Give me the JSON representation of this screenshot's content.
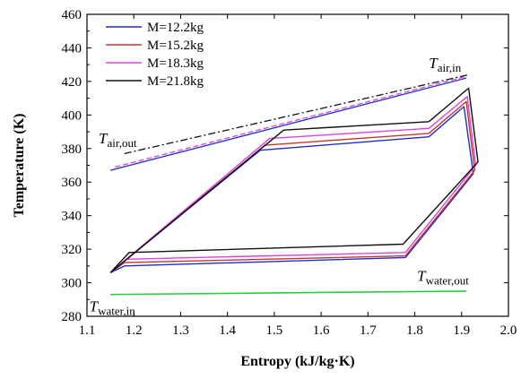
{
  "chart_data": {
    "type": "line",
    "xlabel": "Entropy (kJ/kg·K)",
    "ylabel": "Temperature (K)",
    "xlim": [
      1.1,
      2.0
    ],
    "ylim": [
      280,
      460
    ],
    "xticks": [
      "1.1",
      "1.2",
      "1.3",
      "1.4",
      "1.5",
      "1.6",
      "1.7",
      "1.8",
      "1.9",
      "2.0"
    ],
    "yticks": [
      "280",
      "300",
      "320",
      "340",
      "360",
      "380",
      "400",
      "420",
      "440",
      "460"
    ],
    "legend_position": "top-left",
    "series": [
      {
        "name": "M=12.2kg",
        "color": "#1f2fc8",
        "points": [
          [
            1.15,
            306
          ],
          [
            1.47,
            379
          ],
          [
            1.83,
            387
          ],
          [
            1.905,
            405
          ],
          [
            1.925,
            365
          ],
          [
            1.78,
            315
          ],
          [
            1.18,
            310
          ],
          [
            1.15,
            306
          ]
        ]
      },
      {
        "name": "M=15.2kg",
        "color": "#c0392b",
        "points": [
          [
            1.15,
            306
          ],
          [
            1.48,
            382
          ],
          [
            1.83,
            389
          ],
          [
            1.91,
            408
          ],
          [
            1.928,
            367
          ],
          [
            1.78,
            316
          ],
          [
            1.18,
            312
          ],
          [
            1.15,
            306
          ]
        ]
      },
      {
        "name": "M=18.3kg",
        "color": "#e040e0",
        "points": [
          [
            1.15,
            306
          ],
          [
            1.49,
            386
          ],
          [
            1.83,
            392
          ],
          [
            1.912,
            411
          ],
          [
            1.93,
            370
          ],
          [
            1.78,
            318
          ],
          [
            1.185,
            314
          ],
          [
            1.15,
            306
          ]
        ]
      },
      {
        "name": "M=21.8kg",
        "color": "#111111",
        "points": [
          [
            1.15,
            306
          ],
          [
            1.52,
            391
          ],
          [
            1.83,
            396
          ],
          [
            1.915,
            416
          ],
          [
            1.935,
            372
          ],
          [
            1.775,
            323
          ],
          [
            1.19,
            318
          ],
          [
            1.15,
            306
          ]
        ]
      }
    ],
    "reference_lines": [
      {
        "role": "air-out-dashdot",
        "color": "#111111",
        "style": "dashdot",
        "points": [
          [
            1.18,
            377
          ],
          [
            1.915,
            424
          ]
        ]
      },
      {
        "role": "air-blue",
        "color": "#1f2fc8",
        "style": "solid",
        "points": [
          [
            1.15,
            367
          ],
          [
            1.91,
            422
          ]
        ]
      },
      {
        "role": "air-pink",
        "color": "#e040e0",
        "style": "dashed",
        "points": [
          [
            1.16,
            369
          ],
          [
            1.91,
            423
          ]
        ]
      },
      {
        "role": "water",
        "color": "#2ecc40",
        "style": "solid",
        "points": [
          [
            1.15,
            293
          ],
          [
            1.91,
            295
          ]
        ]
      }
    ],
    "annotations": [
      {
        "main": "T",
        "sub": "air,in",
        "x": 1.83,
        "y": 428
      },
      {
        "main": "T",
        "sub": "air,out",
        "x": 1.125,
        "y": 383
      },
      {
        "main": "T",
        "sub": "water,out",
        "x": 1.805,
        "y": 301
      },
      {
        "main": "T",
        "sub": "water,in",
        "x": 1.105,
        "y": 283
      }
    ]
  }
}
